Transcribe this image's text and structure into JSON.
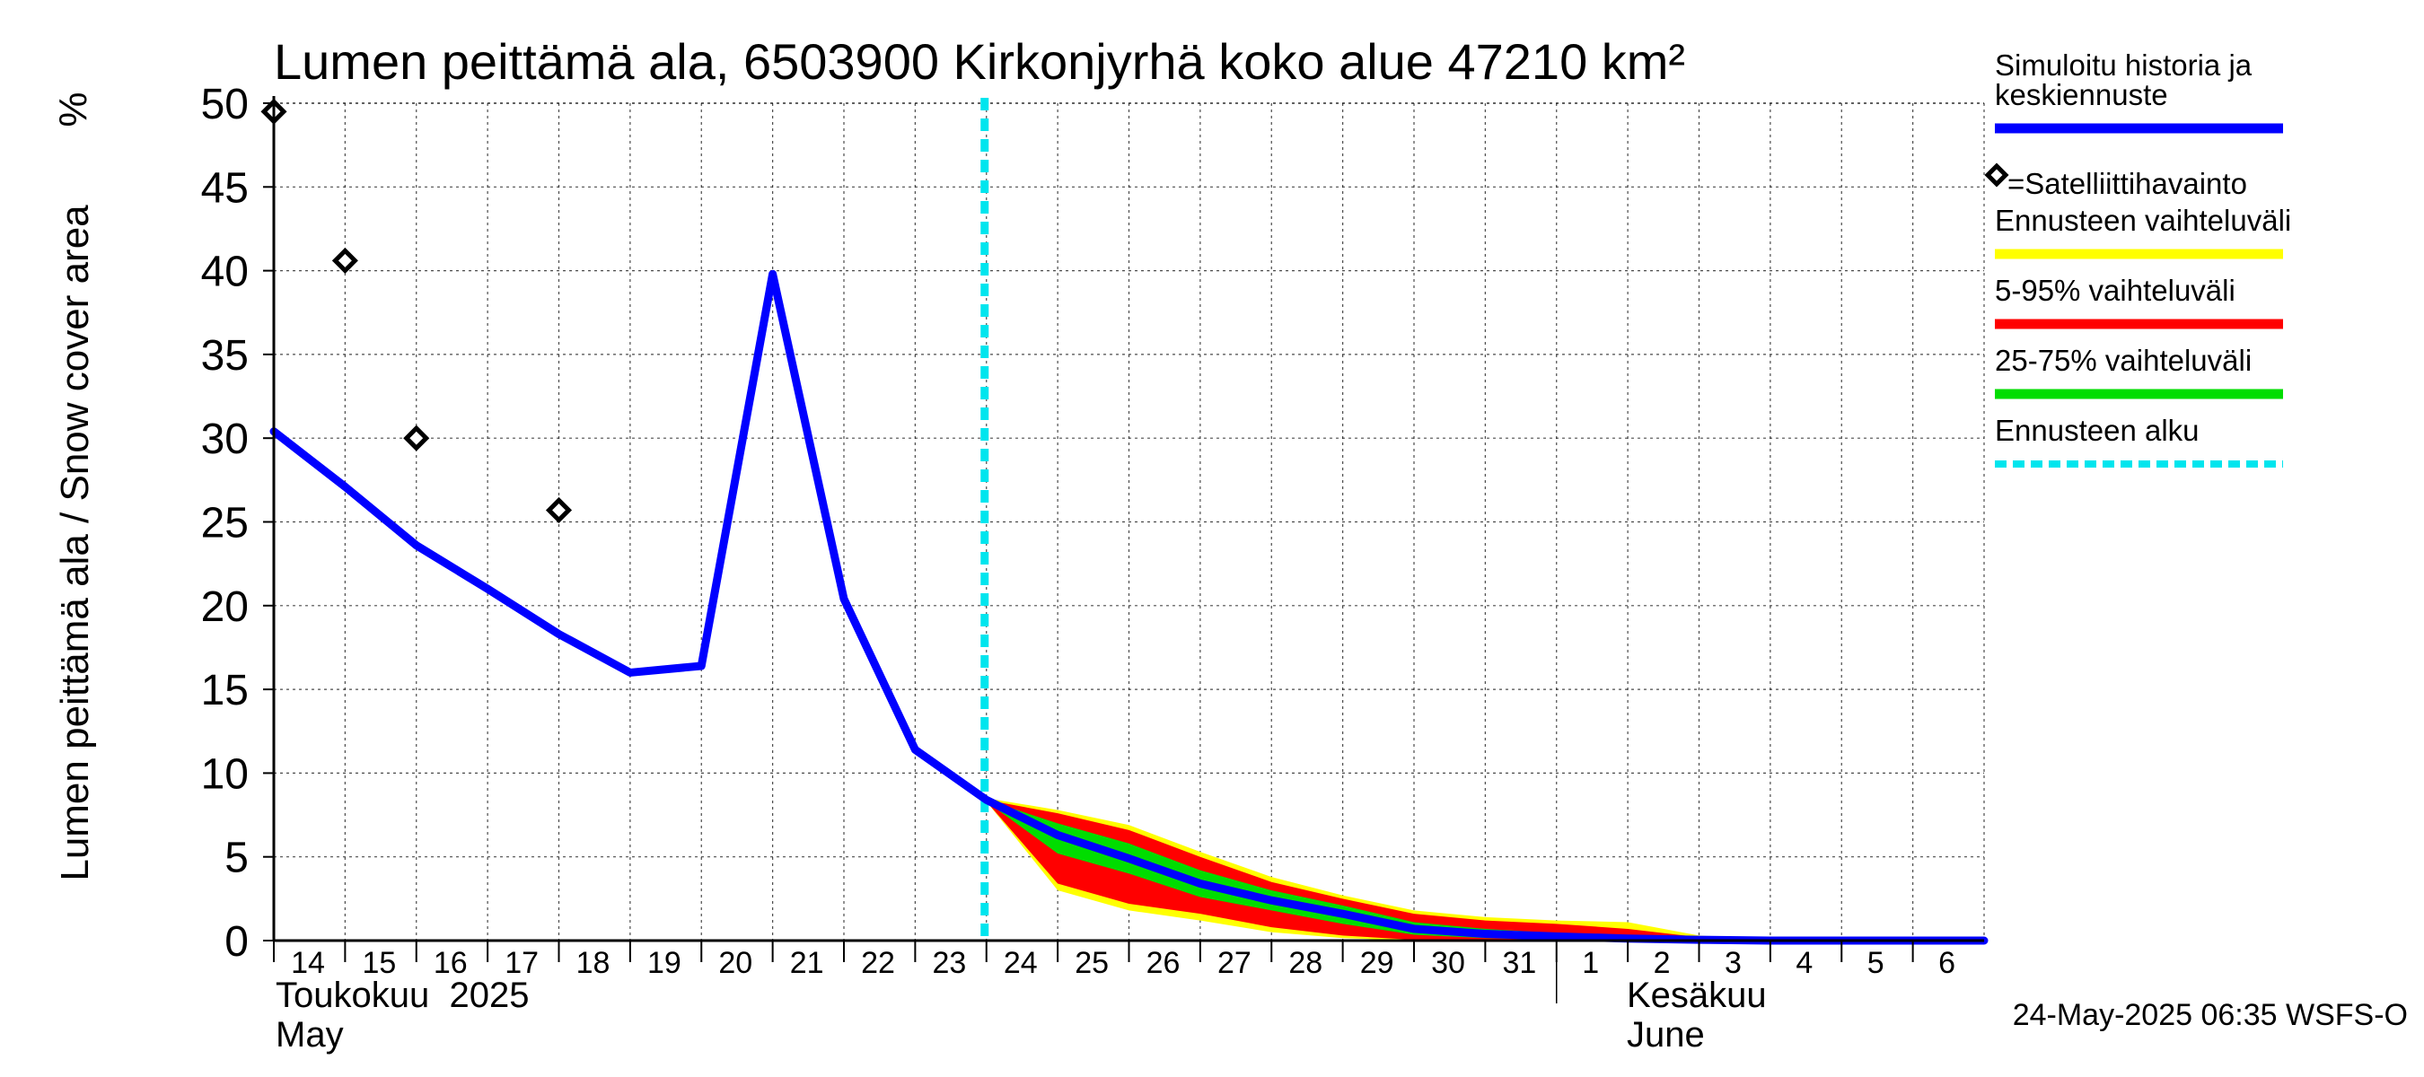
{
  "chart_data": {
    "type": "line",
    "title": "Lumen peittämä ala, 6503900 Kirkonjyrhä koko alue 47210 km²",
    "ylabel": "Lumen peittämä ala / Snow cover area",
    "yunit": "%",
    "ylim": [
      0,
      50
    ],
    "yticks": [
      0,
      5,
      10,
      15,
      20,
      25,
      30,
      35,
      40,
      45,
      50
    ],
    "xlim": [
      "2025-05-14",
      "2025-06-07"
    ],
    "xticks": [
      {
        "date": "2025-05-14",
        "label": "14"
      },
      {
        "date": "2025-05-15",
        "label": "15"
      },
      {
        "date": "2025-05-16",
        "label": "16"
      },
      {
        "date": "2025-05-17",
        "label": "17"
      },
      {
        "date": "2025-05-18",
        "label": "18"
      },
      {
        "date": "2025-05-19",
        "label": "19"
      },
      {
        "date": "2025-05-20",
        "label": "20"
      },
      {
        "date": "2025-05-21",
        "label": "21"
      },
      {
        "date": "2025-05-22",
        "label": "22"
      },
      {
        "date": "2025-05-23",
        "label": "23"
      },
      {
        "date": "2025-05-24",
        "label": "24"
      },
      {
        "date": "2025-05-25",
        "label": "25"
      },
      {
        "date": "2025-05-26",
        "label": "26"
      },
      {
        "date": "2025-05-27",
        "label": "27"
      },
      {
        "date": "2025-05-28",
        "label": "28"
      },
      {
        "date": "2025-05-29",
        "label": "29"
      },
      {
        "date": "2025-05-30",
        "label": "30"
      },
      {
        "date": "2025-05-31",
        "label": "31"
      },
      {
        "date": "2025-06-01",
        "label": "1"
      },
      {
        "date": "2025-06-02",
        "label": "2"
      },
      {
        "date": "2025-06-03",
        "label": "3"
      },
      {
        "date": "2025-06-04",
        "label": "4"
      },
      {
        "date": "2025-06-05",
        "label": "5"
      },
      {
        "date": "2025-06-06",
        "label": "6"
      }
    ],
    "month_labels": {
      "may_fi": "Toukokuu  2025",
      "may_en": "May",
      "june_fi": "Kesäkuu",
      "june_en": "June"
    },
    "month_boundary": "2025-06-01",
    "grid": true,
    "forecast_start": "2025-05-24",
    "series": [
      {
        "name": "Simuloitu historia ja keskiennuste",
        "kind": "line",
        "color": "#0000ff",
        "points": [
          [
            "2025-05-14",
            30.4
          ],
          [
            "2025-05-15",
            27.1
          ],
          [
            "2025-05-16",
            23.6
          ],
          [
            "2025-05-17",
            21.0
          ],
          [
            "2025-05-18",
            18.3
          ],
          [
            "2025-05-19",
            16.0
          ],
          [
            "2025-05-20",
            16.4
          ],
          [
            "2025-05-21",
            39.8
          ],
          [
            "2025-05-22",
            20.4
          ],
          [
            "2025-05-23",
            11.4
          ],
          [
            "2025-05-24",
            8.4
          ],
          [
            "2025-05-25",
            6.3
          ],
          [
            "2025-05-26",
            4.9
          ],
          [
            "2025-05-27",
            3.4
          ],
          [
            "2025-05-28",
            2.4
          ],
          [
            "2025-05-29",
            1.6
          ],
          [
            "2025-05-30",
            0.7
          ],
          [
            "2025-05-31",
            0.4
          ],
          [
            "2025-06-01",
            0.25
          ],
          [
            "2025-06-02",
            0.12
          ],
          [
            "2025-06-03",
            0.05
          ],
          [
            "2025-06-04",
            0.0
          ],
          [
            "2025-06-05",
            0.0
          ],
          [
            "2025-06-06",
            0.0
          ],
          [
            "2025-06-07",
            0.0
          ]
        ]
      },
      {
        "name": "=Satelliittihavainto",
        "kind": "points",
        "color": "#000000",
        "points": [
          [
            "2025-05-14",
            49.5
          ],
          [
            "2025-05-15",
            40.6
          ],
          [
            "2025-05-16",
            30.0
          ],
          [
            "2025-05-18",
            25.7
          ]
        ]
      },
      {
        "name": "Ennusteen vaihteluväli",
        "kind": "band",
        "color": "#ffff00",
        "x": [
          "2025-05-24",
          "2025-05-25",
          "2025-05-26",
          "2025-05-27",
          "2025-05-28",
          "2025-05-29",
          "2025-05-30",
          "2025-05-31",
          "2025-06-01",
          "2025-06-02",
          "2025-06-03",
          "2025-06-04",
          "2025-06-05",
          "2025-06-06",
          "2025-06-07"
        ],
        "upper": [
          8.5,
          7.8,
          6.9,
          5.3,
          3.8,
          2.7,
          1.8,
          1.4,
          1.2,
          1.1,
          0.3,
          0.05,
          0.0,
          0.0,
          0.0
        ],
        "lower": [
          8.3,
          3.0,
          1.8,
          1.2,
          0.5,
          0.15,
          0.0,
          0.0,
          0.0,
          0.0,
          0.0,
          0.0,
          0.0,
          0.0,
          0.0
        ]
      },
      {
        "name": "5-95% vaihteluväli",
        "kind": "band",
        "color": "#ff0000",
        "x": [
          "2025-05-24",
          "2025-05-25",
          "2025-05-26",
          "2025-05-27",
          "2025-05-28",
          "2025-05-29",
          "2025-05-30",
          "2025-05-31",
          "2025-06-01",
          "2025-06-02",
          "2025-06-03",
          "2025-06-04",
          "2025-06-05",
          "2025-06-06",
          "2025-06-07"
        ],
        "upper": [
          8.4,
          7.6,
          6.6,
          5.0,
          3.5,
          2.5,
          1.6,
          1.2,
          1.0,
          0.7,
          0.2,
          0.03,
          0.0,
          0.0,
          0.0
        ],
        "lower": [
          8.3,
          3.4,
          2.2,
          1.6,
          0.8,
          0.3,
          0.05,
          0.0,
          0.0,
          0.0,
          0.0,
          0.0,
          0.0,
          0.0,
          0.0
        ]
      },
      {
        "name": "25-75% vaihteluväli",
        "kind": "band",
        "color": "#00dd00",
        "x": [
          "2025-05-24",
          "2025-05-25",
          "2025-05-26",
          "2025-05-27",
          "2025-05-28",
          "2025-05-29",
          "2025-05-30",
          "2025-05-31",
          "2025-06-01",
          "2025-06-02",
          "2025-06-03",
          "2025-06-04",
          "2025-06-05",
          "2025-06-06",
          "2025-06-07"
        ],
        "upper": [
          8.4,
          7.0,
          5.8,
          4.2,
          3.0,
          2.1,
          1.1,
          0.7,
          0.45,
          0.25,
          0.1,
          0.0,
          0.0,
          0.0,
          0.0
        ],
        "lower": [
          8.3,
          5.2,
          4.0,
          2.6,
          1.8,
          1.0,
          0.35,
          0.15,
          0.05,
          0.0,
          0.0,
          0.0,
          0.0,
          0.0,
          0.0
        ]
      },
      {
        "name": "Ennusteen alku",
        "kind": "vline",
        "color": "#00e5ee"
      }
    ],
    "legend": {
      "position": "right",
      "entries": [
        {
          "lines": [
            "Simuloitu historia ja",
            "keskiennuste"
          ],
          "color": "#0000ff",
          "style": "solid"
        },
        {
          "lines": [
            "=Satelliittihavainto"
          ],
          "color": "#000000",
          "style": "marker"
        },
        {
          "lines": [
            "Ennusteen vaihteluväli"
          ],
          "color": "#ffff00",
          "style": "solid"
        },
        {
          "lines": [
            "5-95% vaihteluväli"
          ],
          "color": "#ff0000",
          "style": "solid"
        },
        {
          "lines": [
            "25-75% vaihteluväli"
          ],
          "color": "#00dd00",
          "style": "solid"
        },
        {
          "lines": [
            "Ennusteen alku"
          ],
          "color": "#00e5ee",
          "style": "dashed"
        }
      ]
    }
  },
  "footer": "24-May-2025 06:35 WSFS-O"
}
